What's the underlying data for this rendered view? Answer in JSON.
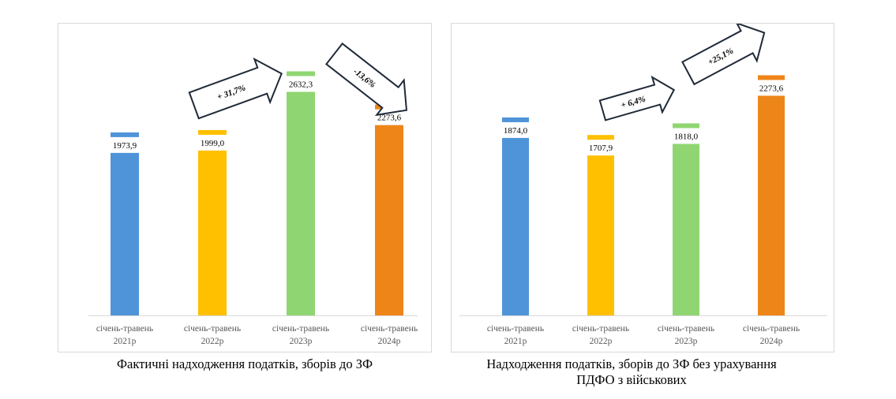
{
  "chart_data": [
    {
      "type": "bar",
      "categories": [
        [
          "січень-травень",
          "2021р"
        ],
        [
          "січень-травень",
          "2022р"
        ],
        [
          "січень-травень",
          "2023р"
        ],
        [
          "січень-травень",
          "2024р"
        ]
      ],
      "values": [
        1973.9,
        1999.0,
        2632.3,
        2273.6
      ],
      "data_labels": [
        "1973,9",
        "1999,0",
        "2632,3",
        "2273,6"
      ],
      "colors": [
        "#4f94d8",
        "#ffc000",
        "#8fd672",
        "#ee8519"
      ],
      "arrows": [
        {
          "label": "+ 31,7%",
          "direction": "up",
          "from": 1,
          "to": 2
        },
        {
          "label": "-13,6%",
          "direction": "down",
          "from": 2,
          "to": 3
        }
      ],
      "ylim": [
        0,
        2900
      ],
      "grid": false
    },
    {
      "type": "bar",
      "categories": [
        [
          "січень-травень",
          "2021р"
        ],
        [
          "січень-травень",
          "2022р"
        ],
        [
          "січень-травень",
          "2023р"
        ],
        [
          "січень-травень",
          "2024р"
        ]
      ],
      "values": [
        1874.0,
        1707.9,
        1818.0,
        2273.6
      ],
      "data_labels": [
        "1874,0",
        "1707,9",
        "1818,0",
        "2273,6"
      ],
      "colors": [
        "#4f94d8",
        "#ffc000",
        "#8fd672",
        "#ee8519"
      ],
      "arrows": [
        {
          "label": "+ 6,4%",
          "direction": "up",
          "from": 1,
          "to": 2
        },
        {
          "label": "+25,1%",
          "direction": "up",
          "from": 2,
          "to": 3
        }
      ],
      "ylim": [
        0,
        2650
      ],
      "grid": false
    }
  ],
  "captions": {
    "left": [
      "Фактичні надходження податків, зборів до ЗФ"
    ],
    "right": [
      "Надходження податків, зборів до ЗФ без урахування",
      "ПДФО з військових"
    ]
  }
}
